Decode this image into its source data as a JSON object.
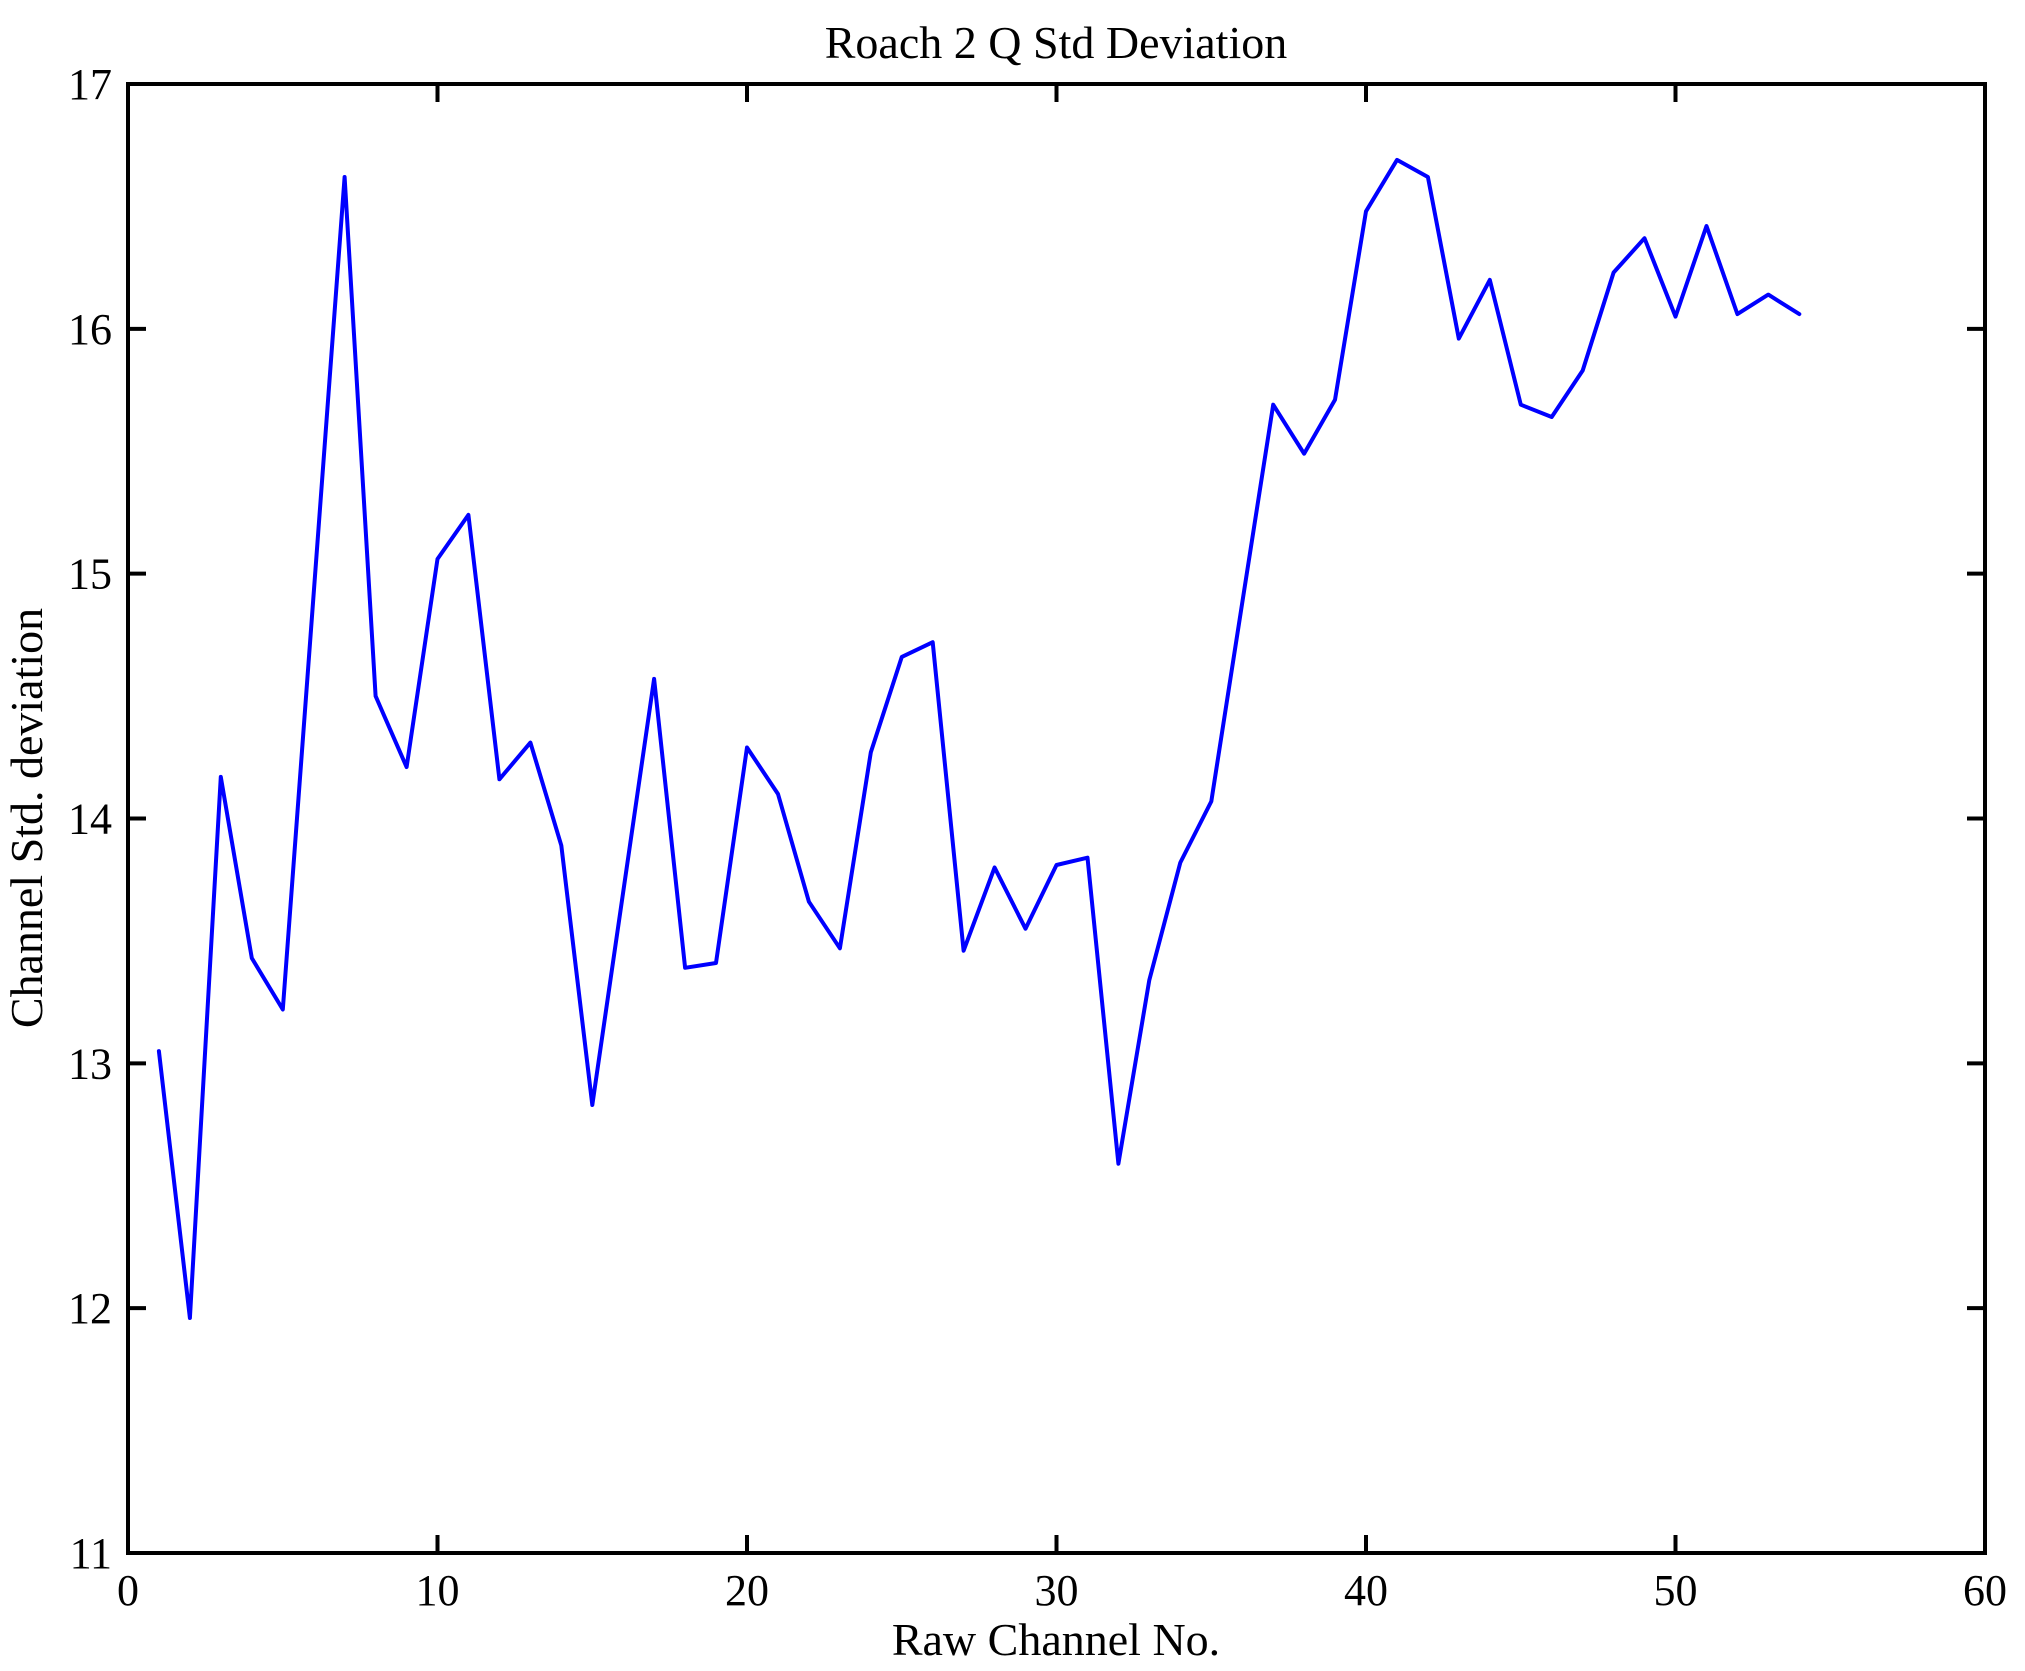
{
  "figure": {
    "background": "#ffffff",
    "axis_color": "#000000"
  },
  "chart_data": {
    "type": "line",
    "title": "Roach 2 Q Std Deviation",
    "xlabel": "Raw Channel No.",
    "ylabel": "Channel Std. deviation",
    "xlim": [
      0,
      60
    ],
    "ylim": [
      11,
      17
    ],
    "x_ticks": [
      0,
      10,
      20,
      30,
      40,
      50,
      60
    ],
    "y_ticks": [
      11,
      12,
      13,
      14,
      15,
      16,
      17
    ],
    "grid": false,
    "legend": null,
    "line_color": "#0000FF",
    "x": [
      1,
      2,
      3,
      4,
      5,
      6,
      7,
      8,
      9,
      10,
      11,
      12,
      13,
      14,
      15,
      16,
      17,
      18,
      19,
      20,
      21,
      22,
      23,
      24,
      25,
      26,
      27,
      28,
      29,
      30,
      31,
      32,
      33,
      34,
      35,
      36,
      37,
      38,
      39,
      40,
      41,
      42,
      43,
      44,
      45,
      46,
      47,
      48,
      49,
      50,
      51,
      52,
      53,
      54
    ],
    "values": [
      13.05,
      11.96,
      14.17,
      13.43,
      13.22,
      14.92,
      16.62,
      14.5,
      14.21,
      15.06,
      15.24,
      14.16,
      14.31,
      13.89,
      12.83,
      13.7,
      14.57,
      13.39,
      13.41,
      14.29,
      14.1,
      13.66,
      13.47,
      14.27,
      14.66,
      14.72,
      13.46,
      13.8,
      13.55,
      13.81,
      13.84,
      12.59,
      13.34,
      13.82,
      14.07,
      14.88,
      15.69,
      15.49,
      15.71,
      16.48,
      16.69,
      16.62,
      15.96,
      16.2,
      15.69,
      15.64,
      15.83,
      16.23,
      16.37,
      16.05,
      16.42,
      16.06,
      16.14,
      16.06
    ]
  }
}
